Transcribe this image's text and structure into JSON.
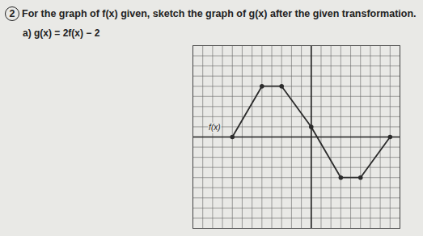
{
  "chart_data": {
    "type": "line",
    "question_number": "2",
    "title": "For the graph of f(x) given, sketch the graph of g(x) after the given transformation.",
    "subtitle": "a) g(x) = 2f(x) − 2",
    "series": [
      {
        "name": "f(x)",
        "color": "#2b2b2b",
        "marker": "circle",
        "x": [
          -8,
          -5,
          -3,
          0,
          3,
          5,
          8
        ],
        "values": [
          0,
          5,
          5,
          1,
          -4,
          -4,
          0
        ]
      }
    ],
    "xlim": [
      -12,
      9
    ],
    "ylim": [
      -9,
      9
    ],
    "xticks": [
      -12,
      -11,
      -10,
      -9,
      -8,
      -7,
      -6,
      -5,
      -4,
      -3,
      -2,
      -1,
      0,
      1,
      2,
      3,
      4,
      5,
      6,
      7,
      8,
      9
    ],
    "yticks": [
      -9,
      -8,
      -7,
      -6,
      -5,
      -4,
      -3,
      -2,
      -1,
      0,
      1,
      2,
      3,
      4,
      5,
      6,
      7,
      8,
      9
    ],
    "annotations": [
      {
        "text": "f(x)",
        "x": -9.8,
        "y": 0.9
      }
    ],
    "grid": true,
    "tick_labels": false
  }
}
